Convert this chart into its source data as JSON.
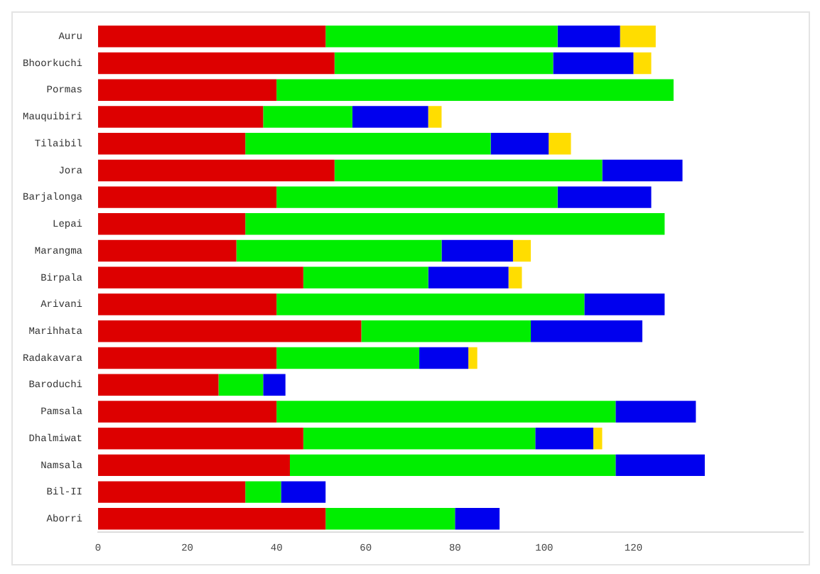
{
  "chart_data": {
    "type": "bar",
    "orientation": "horizontal",
    "stacked": true,
    "legend": false,
    "grid": false,
    "categories": [
      "Auru",
      "Bhoorkuchi",
      "Pormas",
      "Mauquibiri",
      "Tilaibil",
      "Jora",
      "Barjalonga",
      "Lepai",
      "Marangma",
      "Birpala",
      "Arivani",
      "Marihhata",
      "Radakavara",
      "Baroduchi",
      "Pamsala",
      "Dhalmiwat",
      "Namsala",
      "Bil-II",
      "Aborri"
    ],
    "xlim": [
      0,
      158
    ],
    "xticks": [
      0,
      20,
      40,
      60,
      80,
      100,
      120
    ],
    "series": [
      {
        "color": "#dd0000",
        "values": [
          51,
          53,
          40,
          37,
          33,
          53,
          40,
          33,
          31,
          46,
          40,
          59,
          40,
          27,
          40,
          46,
          43,
          33,
          51
        ]
      },
      {
        "color": "#00ee00",
        "values": [
          52,
          49,
          89,
          20,
          55,
          60,
          63,
          94,
          46,
          28,
          69,
          38,
          32,
          10,
          76,
          52,
          73,
          8,
          29
        ]
      },
      {
        "color": "#0000ee",
        "values": [
          14,
          18,
          null,
          17,
          13,
          18,
          21,
          null,
          16,
          18,
          18,
          25,
          11,
          5,
          18,
          13,
          20,
          10,
          10
        ]
      },
      {
        "color": "#ffdd00",
        "values": [
          8,
          4,
          null,
          3,
          5,
          null,
          null,
          null,
          4,
          3,
          null,
          null,
          2,
          null,
          null,
          2,
          null,
          null,
          null
        ]
      }
    ]
  }
}
